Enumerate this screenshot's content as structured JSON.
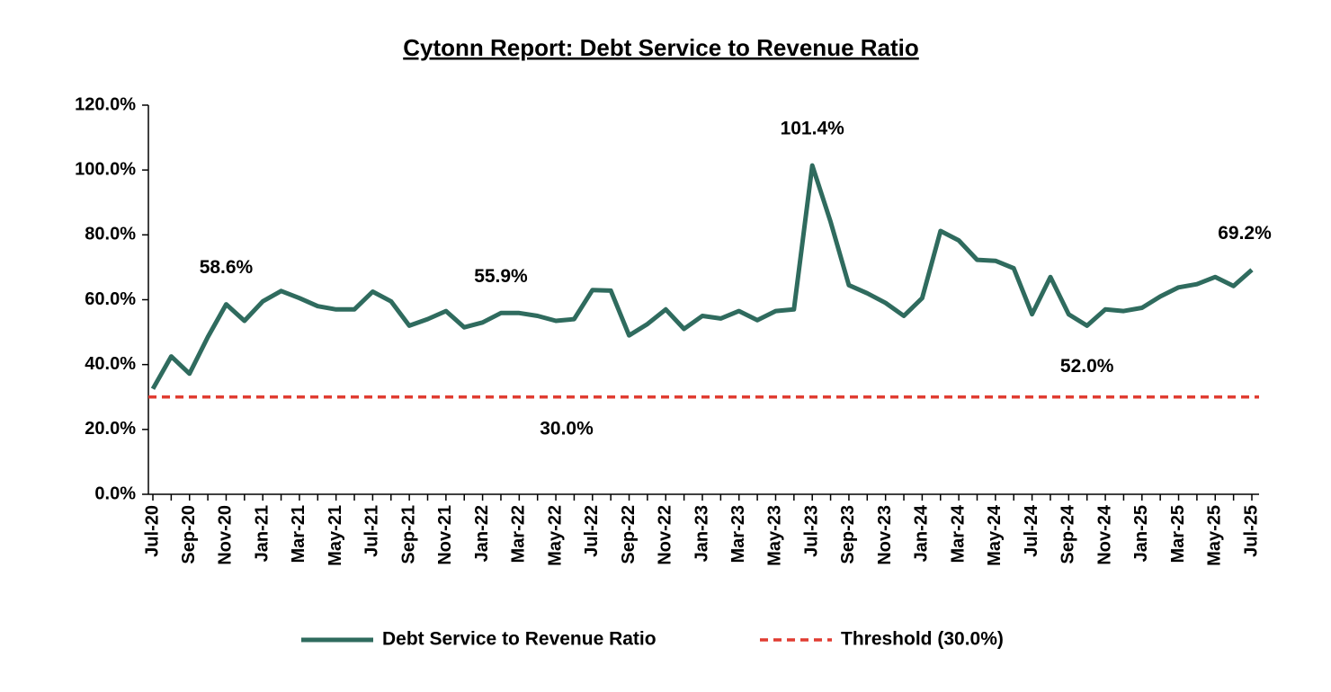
{
  "chart_data": {
    "type": "line",
    "title": "Cytonn Report: Debt Service to Revenue Ratio",
    "categories": [
      "Jul-20",
      null,
      "Sep-20",
      null,
      "Nov-20",
      null,
      "Jan-21",
      null,
      "Mar-21",
      null,
      "May-21",
      null,
      "Jul-21",
      null,
      "Sep-21",
      null,
      "Nov-21",
      null,
      "Jan-22",
      null,
      "Mar-22",
      null,
      "May-22",
      null,
      "Jul-22",
      null,
      "Sep-22",
      null,
      "Nov-22",
      null,
      "Jan-23",
      null,
      "Mar-23",
      null,
      "May-23",
      null,
      "Jul-23",
      null,
      "Sep-23",
      null,
      "Nov-23",
      null,
      "Jan-24",
      null,
      "Mar-24",
      null,
      "May-24",
      null,
      "Jul-24",
      null,
      "Sep-24",
      null,
      "Nov-24",
      null,
      "Jan-25",
      null,
      "Mar-25",
      null,
      "May-25",
      null,
      "Jul-25"
    ],
    "series": [
      {
        "name": "Debt Service to Revenue Ratio",
        "color": "#2f6b5e",
        "values": [
          32.5,
          42.5,
          37.2,
          48.5,
          58.6,
          53.5,
          59.5,
          62.7,
          60.5,
          58,
          57,
          57,
          62.5,
          59.5,
          52,
          54,
          56.5,
          51.5,
          53,
          55.9,
          55.9,
          55,
          53.5,
          54,
          63,
          62.8,
          49,
          52.5,
          57,
          51,
          55,
          54.2,
          56.5,
          53.7,
          56.5,
          57,
          101.4,
          84,
          64.5,
          62,
          59,
          55,
          60.5,
          81.2,
          78.3,
          72.3,
          72,
          69.7,
          55.5,
          67,
          55.5,
          52,
          57,
          56.5,
          57.5,
          61,
          63.8,
          64.8,
          67,
          64.2,
          69.2
        ],
        "value_labels": [
          null,
          null,
          null,
          null,
          "58.6%",
          null,
          null,
          null,
          null,
          null,
          null,
          null,
          null,
          null,
          null,
          null,
          null,
          null,
          null,
          "55.9%",
          null,
          null,
          null,
          null,
          null,
          null,
          null,
          null,
          null,
          null,
          null,
          null,
          null,
          null,
          null,
          null,
          "101.4%",
          null,
          null,
          null,
          null,
          null,
          null,
          null,
          null,
          null,
          null,
          null,
          null,
          null,
          null,
          "52.0%",
          null,
          null,
          null,
          null,
          null,
          null,
          null,
          null,
          "69.2%"
        ]
      }
    ],
    "threshold": {
      "name": "Threshold (30.0%)",
      "color": "#e03c31",
      "value": 30,
      "label": "30.0%"
    },
    "ylim": [
      0,
      120
    ],
    "yticks": [
      {
        "value": 0,
        "label": "0.0%"
      },
      {
        "value": 20,
        "label": "20.0%"
      },
      {
        "value": 40,
        "label": "40.0%"
      },
      {
        "value": 60,
        "label": "60.0%"
      },
      {
        "value": 80,
        "label": "80.0%"
      },
      {
        "value": 100,
        "label": "100.0%"
      },
      {
        "value": 120,
        "label": "120.0%"
      }
    ],
    "legend": "bottom"
  }
}
